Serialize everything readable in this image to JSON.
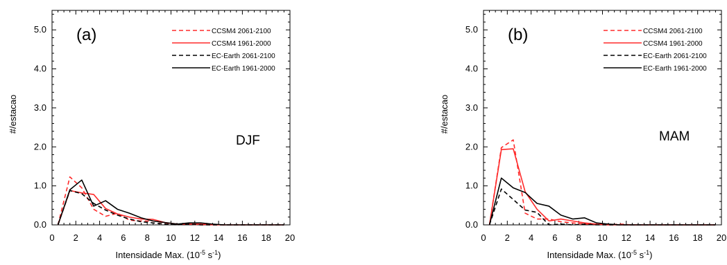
{
  "chart_data": [
    {
      "type": "line",
      "panel_label": "(a)",
      "season_label": "DJF",
      "xlabel": "Intensidade Max. (10",
      "xlabel_exp": "-5",
      "xlabel_unit": " s",
      "xlabel_unit_exp": "-1",
      "xlabel_close": ")",
      "ylabel": "#/estacao",
      "xlim": [
        0,
        20
      ],
      "ylim": [
        0,
        5.5
      ],
      "xticks": [
        "0",
        "2",
        "4",
        "6",
        "8",
        "10",
        "12",
        "14",
        "16",
        "18",
        "20"
      ],
      "yticks": [
        "0.0",
        "1.0",
        "2.0",
        "3.0",
        "4.0",
        "5.0"
      ],
      "legend_position": "top-right",
      "series": [
        {
          "name": "CCSM4 2061-2100",
          "color": "#ff2a2a",
          "dash": true,
          "x": [
            0.5,
            1.5,
            2.5,
            3.5,
            4.5,
            5.5,
            6.5,
            7.5,
            8.5,
            9.5,
            10.5,
            11.5,
            12.5,
            13.5,
            14.5,
            15.5,
            16.5,
            17.5,
            18.5,
            19.5
          ],
          "y": [
            0.0,
            1.23,
            0.95,
            0.4,
            0.22,
            0.3,
            0.12,
            0.1,
            0.1,
            0.05,
            0.02,
            0.02,
            0.0,
            0.0,
            0.0,
            0.0,
            0.0,
            0.0,
            0.0,
            0.0
          ]
        },
        {
          "name": "CCSM4 1961-2000",
          "color": "#ff2a2a",
          "dash": false,
          "x": [
            0.5,
            1.5,
            2.5,
            3.5,
            4.5,
            5.5,
            6.5,
            7.5,
            8.5,
            9.5,
            10.5,
            11.5,
            12.5,
            13.5,
            14.5,
            15.5,
            16.5,
            17.5,
            18.5,
            19.5
          ],
          "y": [
            0.0,
            0.88,
            0.82,
            0.78,
            0.42,
            0.28,
            0.2,
            0.15,
            0.14,
            0.06,
            0.02,
            0.02,
            0.02,
            0.0,
            0.0,
            0.0,
            0.0,
            0.0,
            0.0,
            0.0
          ]
        },
        {
          "name": "EC-Earth 2061-2100",
          "color": "#000000",
          "dash": true,
          "x": [
            0.5,
            1.5,
            2.5,
            3.5,
            4.5,
            5.5,
            6.5,
            7.5,
            8.5,
            9.5,
            10.5,
            11.5,
            12.5,
            13.5,
            14.5,
            15.5,
            16.5,
            17.5,
            18.5,
            19.5
          ],
          "y": [
            0.0,
            0.88,
            0.8,
            0.55,
            0.38,
            0.25,
            0.15,
            0.08,
            0.05,
            0.02,
            0.0,
            0.02,
            0.0,
            0.0,
            0.0,
            0.0,
            0.0,
            0.0,
            0.0,
            0.0
          ]
        },
        {
          "name": "EC-Earth 1961-2000",
          "color": "#000000",
          "dash": false,
          "x": [
            0.5,
            1.5,
            2.5,
            3.5,
            4.5,
            5.5,
            6.5,
            7.5,
            8.5,
            9.5,
            10.5,
            11.5,
            12.5,
            13.5,
            14.5,
            15.5,
            16.5,
            17.5,
            18.5,
            19.5
          ],
          "y": [
            0.0,
            0.9,
            1.15,
            0.48,
            0.62,
            0.4,
            0.3,
            0.18,
            0.1,
            0.06,
            0.02,
            0.05,
            0.05,
            0.02,
            0.0,
            0.0,
            0.0,
            0.0,
            0.0,
            0.0
          ]
        }
      ]
    },
    {
      "type": "line",
      "panel_label": "(b)",
      "season_label": "MAM",
      "xlabel": "Intensidade Max. (10",
      "xlabel_exp": "-5",
      "xlabel_unit": " s",
      "xlabel_unit_exp": "-1",
      "xlabel_close": ")",
      "ylabel": "#/estacao",
      "xlim": [
        0,
        20
      ],
      "ylim": [
        0,
        5.5
      ],
      "xticks": [
        "0",
        "2",
        "4",
        "6",
        "8",
        "10",
        "12",
        "14",
        "16",
        "18",
        "20"
      ],
      "yticks": [
        "0.0",
        "1.0",
        "2.0",
        "3.0",
        "4.0",
        "5.0"
      ],
      "legend_position": "top-right",
      "series": [
        {
          "name": "CCSM4 2061-2100",
          "color": "#ff2a2a",
          "dash": true,
          "x": [
            0.5,
            1.5,
            2.5,
            3.5,
            4.5,
            5.5,
            6.5,
            7.5,
            8.5,
            9.5,
            10.5,
            11.5,
            12.5,
            13.5,
            14.5,
            15.5,
            16.5,
            17.5,
            18.5,
            19.5
          ],
          "y": [
            0.0,
            1.98,
            2.18,
            0.3,
            0.15,
            0.15,
            0.08,
            0.05,
            0.02,
            0.02,
            0.0,
            0.02,
            0.0,
            0.0,
            0.0,
            0.0,
            0.0,
            0.0,
            0.0,
            0.0
          ]
        },
        {
          "name": "CCSM4 1961-2000",
          "color": "#ff2a2a",
          "dash": false,
          "x": [
            0.5,
            1.5,
            2.5,
            3.5,
            4.5,
            5.5,
            6.5,
            7.5,
            8.5,
            9.5,
            10.5,
            11.5,
            12.5,
            13.5,
            14.5,
            15.5,
            16.5,
            17.5,
            18.5,
            19.5
          ],
          "y": [
            0.0,
            1.93,
            1.95,
            0.85,
            0.4,
            0.1,
            0.15,
            0.1,
            0.05,
            0.02,
            0.0,
            0.0,
            0.0,
            0.0,
            0.0,
            0.0,
            0.0,
            0.0,
            0.0,
            0.0
          ]
        },
        {
          "name": "EC-Earth 2061-2100",
          "color": "#000000",
          "dash": true,
          "x": [
            0.5,
            1.5,
            2.5,
            3.5,
            4.5,
            5.5,
            6.5,
            7.5,
            8.5,
            9.5,
            10.5,
            11.5,
            12.5,
            13.5,
            14.5,
            15.5,
            16.5,
            17.5,
            18.5,
            19.5
          ],
          "y": [
            0.0,
            0.92,
            0.65,
            0.38,
            0.32,
            0.0,
            0.02,
            0.0,
            0.02,
            0.0,
            0.0,
            0.0,
            0.0,
            0.0,
            0.0,
            0.0,
            0.0,
            0.0,
            0.0,
            0.0
          ]
        },
        {
          "name": "EC-Earth 1961-2000",
          "color": "#000000",
          "dash": false,
          "x": [
            0.5,
            1.5,
            2.5,
            3.5,
            4.5,
            5.5,
            6.5,
            7.5,
            8.5,
            9.5,
            10.5,
            11.5,
            12.5,
            13.5,
            14.5,
            15.5,
            16.5,
            17.5,
            18.5,
            19.5
          ],
          "y": [
            0.0,
            1.2,
            0.95,
            0.83,
            0.55,
            0.48,
            0.25,
            0.15,
            0.18,
            0.05,
            0.02,
            0.0,
            0.0,
            0.0,
            0.0,
            0.0,
            0.0,
            0.0,
            0.0,
            0.0
          ]
        }
      ]
    }
  ]
}
